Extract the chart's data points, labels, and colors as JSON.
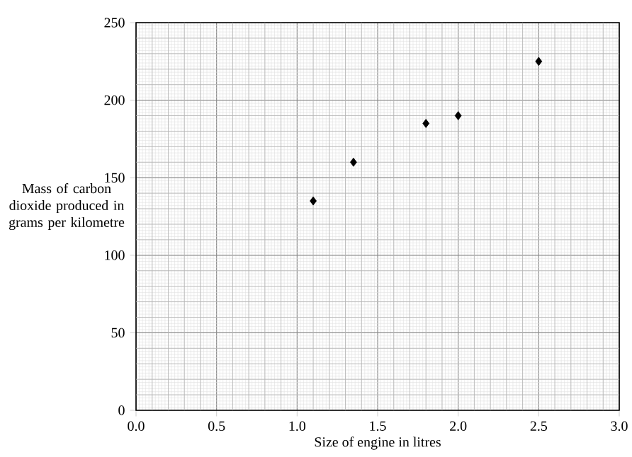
{
  "chart_data": {
    "type": "scatter",
    "xlabel": "Size of engine in litres",
    "ylabel": "Mass of carbon dioxide produced in grams per kilometre",
    "x": [
      1.1,
      1.35,
      1.8,
      2.0,
      2.5
    ],
    "values": [
      135,
      160,
      185,
      190,
      225
    ],
    "color": "#000000",
    "marker": "diamond",
    "xlim": [
      0,
      3
    ],
    "ylim": [
      0,
      250
    ],
    "xticks": [
      {
        "value": 0,
        "label": "0.0"
      },
      {
        "value": 0.5,
        "label": "0.5"
      },
      {
        "value": 1,
        "label": "1.0"
      },
      {
        "value": 1.5,
        "label": "1.5"
      },
      {
        "value": 2,
        "label": "2.0"
      },
      {
        "value": 2.5,
        "label": "2.5"
      },
      {
        "value": 3,
        "label": "3.0"
      }
    ],
    "yticks": [
      0,
      50,
      100,
      150,
      200,
      250
    ],
    "grid": true
  }
}
